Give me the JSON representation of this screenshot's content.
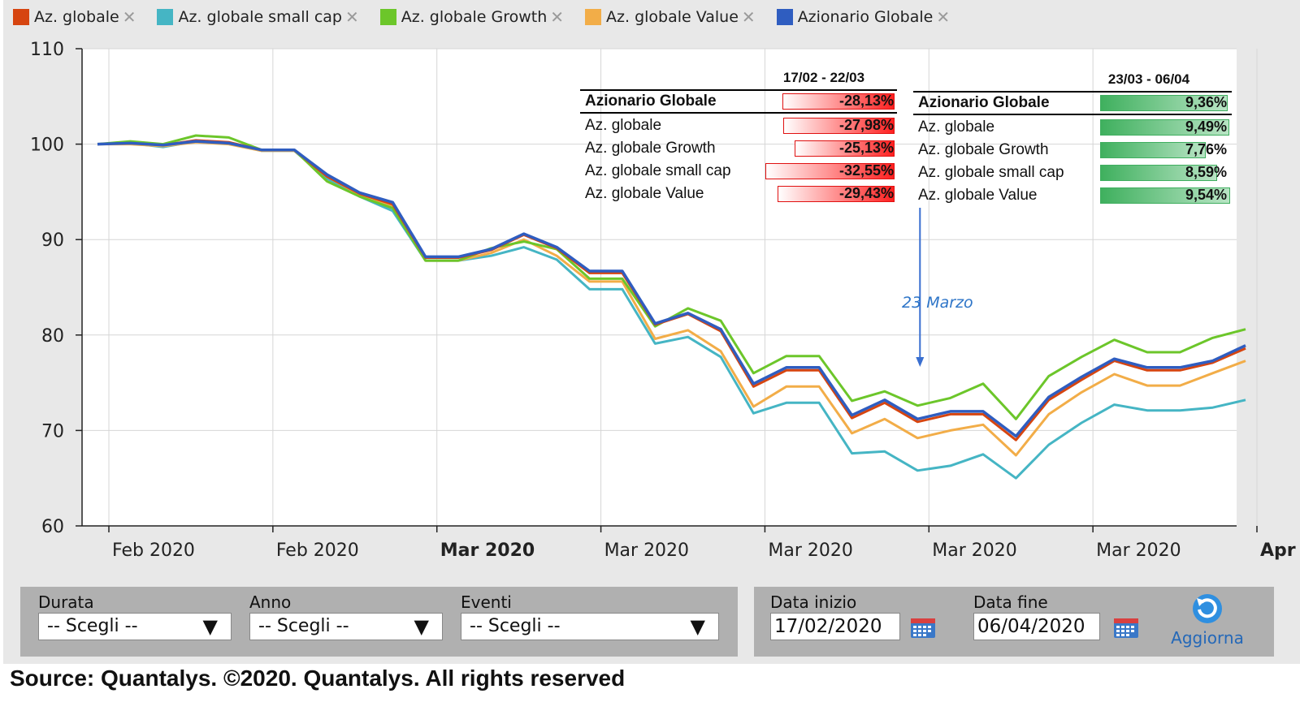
{
  "legend": [
    {
      "label": "Az. globale",
      "color": "#d64510"
    },
    {
      "label": "Az. globale small cap",
      "color": "#45b5c4"
    },
    {
      "label": "Az. globale Growth",
      "color": "#6cc62a"
    },
    {
      "label": "Az. globale Value",
      "color": "#f2ad48"
    },
    {
      "label": "Azionario Globale",
      "color": "#2f5dc0"
    }
  ],
  "remove_glyph": "✕",
  "chart_data": {
    "type": "line",
    "ylim": [
      60,
      110
    ],
    "yticks": [
      "110",
      "100",
      "90",
      "80",
      "70",
      "60"
    ],
    "xtick_labels": [
      {
        "text": "Feb 2020",
        "bold": false
      },
      {
        "text": "Feb 2020",
        "bold": false
      },
      {
        "text": "Mar 2020",
        "bold": true
      },
      {
        "text": "Mar 2020",
        "bold": false
      },
      {
        "text": "Mar 2020",
        "bold": false
      },
      {
        "text": "Mar 2020",
        "bold": false
      },
      {
        "text": "Mar 2020",
        "bold": false
      },
      {
        "text": "Apr",
        "bold": true
      }
    ],
    "x": [
      "17/02",
      "18/02",
      "19/02",
      "20/02",
      "21/02",
      "24/02",
      "25/02",
      "26/02",
      "27/02",
      "28/02",
      "02/03",
      "03/03",
      "04/03",
      "05/03",
      "06/03",
      "09/03",
      "10/03",
      "11/03",
      "12/03",
      "13/03",
      "16/03",
      "17/03",
      "18/03",
      "19/03",
      "20/03",
      "23/03",
      "24/03",
      "25/03",
      "26/03",
      "27/03",
      "30/03",
      "31/03",
      "01/04",
      "02/04",
      "03/04",
      "06/04"
    ],
    "series": [
      {
        "name": "Az. globale",
        "color": "#d64510",
        "values": [
          100.0,
          100.1,
          99.9,
          100.4,
          100.2,
          99.4,
          99.4,
          96.6,
          94.8,
          93.7,
          88.1,
          88.1,
          88.9,
          90.5,
          89.1,
          86.5,
          86.5,
          81.1,
          82.2,
          80.4,
          74.6,
          76.3,
          76.3,
          71.3,
          72.9,
          70.9,
          71.7,
          71.7,
          69.0,
          73.2,
          75.3,
          77.3,
          76.3,
          76.3,
          77.1,
          78.6
        ]
      },
      {
        "name": "Az. globale small cap",
        "color": "#45b5c4",
        "values": [
          100.0,
          100.1,
          99.7,
          100.3,
          100.1,
          99.3,
          99.3,
          96.4,
          94.5,
          93.0,
          87.8,
          87.8,
          88.3,
          89.2,
          87.9,
          84.8,
          84.8,
          79.1,
          79.8,
          77.7,
          71.8,
          72.9,
          72.9,
          67.6,
          67.8,
          65.8,
          66.3,
          67.5,
          65.0,
          68.5,
          70.8,
          72.7,
          72.1,
          72.1,
          72.4,
          73.2
        ]
      },
      {
        "name": "Az. globale Growth",
        "color": "#6cc62a",
        "values": [
          100.0,
          100.3,
          100.0,
          100.9,
          100.7,
          99.4,
          99.4,
          96.1,
          94.5,
          93.3,
          87.8,
          87.8,
          89.1,
          89.8,
          89.0,
          85.9,
          85.9,
          80.9,
          82.8,
          81.5,
          76.0,
          77.8,
          77.8,
          73.1,
          74.1,
          72.6,
          73.4,
          74.9,
          71.2,
          75.7,
          77.7,
          79.5,
          78.2,
          78.2,
          79.7,
          80.6
        ]
      },
      {
        "name": "Az. globale Value",
        "color": "#f2ad48",
        "values": [
          100.0,
          100.0,
          99.8,
          100.2,
          100.0,
          99.3,
          99.3,
          96.6,
          94.7,
          93.5,
          87.8,
          87.8,
          88.6,
          90.0,
          88.3,
          85.6,
          85.6,
          79.6,
          80.5,
          78.3,
          72.5,
          74.6,
          74.6,
          69.7,
          71.2,
          69.2,
          70.0,
          70.6,
          67.4,
          71.7,
          74.0,
          75.9,
          74.7,
          74.7,
          76.0,
          77.3
        ]
      },
      {
        "name": "Azionario Globale",
        "color": "#2f5dc0",
        "values": [
          100.0,
          100.1,
          99.9,
          100.3,
          100.1,
          99.4,
          99.4,
          96.8,
          94.9,
          93.9,
          88.2,
          88.2,
          89.0,
          90.6,
          89.2,
          86.7,
          86.7,
          81.2,
          82.3,
          80.6,
          74.9,
          76.6,
          76.6,
          71.6,
          73.2,
          71.2,
          72.0,
          72.0,
          69.4,
          73.5,
          75.6,
          77.5,
          76.6,
          76.6,
          77.3,
          78.9
        ]
      }
    ],
    "annotation": {
      "text": "23 Marzo"
    }
  },
  "table_left": {
    "period": "17/02 - 22/03",
    "rows": [
      {
        "name": "Azionario Globale",
        "value": "-28,13%",
        "num": -28.13
      },
      {
        "name": "Az. globale",
        "value": "-27,98%",
        "num": -27.98
      },
      {
        "name": "Az. globale Growth",
        "value": "-25,13%",
        "num": -25.13
      },
      {
        "name": "Az. globale small cap",
        "value": "-32,55%",
        "num": -32.55
      },
      {
        "name": "Az. globale Value",
        "value": "-29,43%",
        "num": -29.43
      }
    ]
  },
  "table_right": {
    "period": "23/03 - 06/04",
    "rows": [
      {
        "name": "Azionario Globale",
        "value": "9,36%",
        "num": 9.36
      },
      {
        "name": "Az. globale",
        "value": "9,49%",
        "num": 9.49
      },
      {
        "name": "Az. globale Growth",
        "value": "7,76%",
        "num": 7.76
      },
      {
        "name": "Az. globale small cap",
        "value": "8,59%",
        "num": 8.59
      },
      {
        "name": "Az. globale Value",
        "value": "9,54%",
        "num": 9.54
      }
    ]
  },
  "controls": {
    "durata_label": "Durata",
    "anno_label": "Anno",
    "eventi_label": "Eventi",
    "select_placeholder": "-- Scegli --",
    "data_inizio_label": "Data inizio",
    "data_inizio_value": "17/02/2020",
    "data_fine_label": "Data fine",
    "data_fine_value": "06/04/2020",
    "refresh_label": "Aggiorna"
  },
  "source_note": "Source: Quantalys. ©2020. Quantalys. All rights reserved"
}
